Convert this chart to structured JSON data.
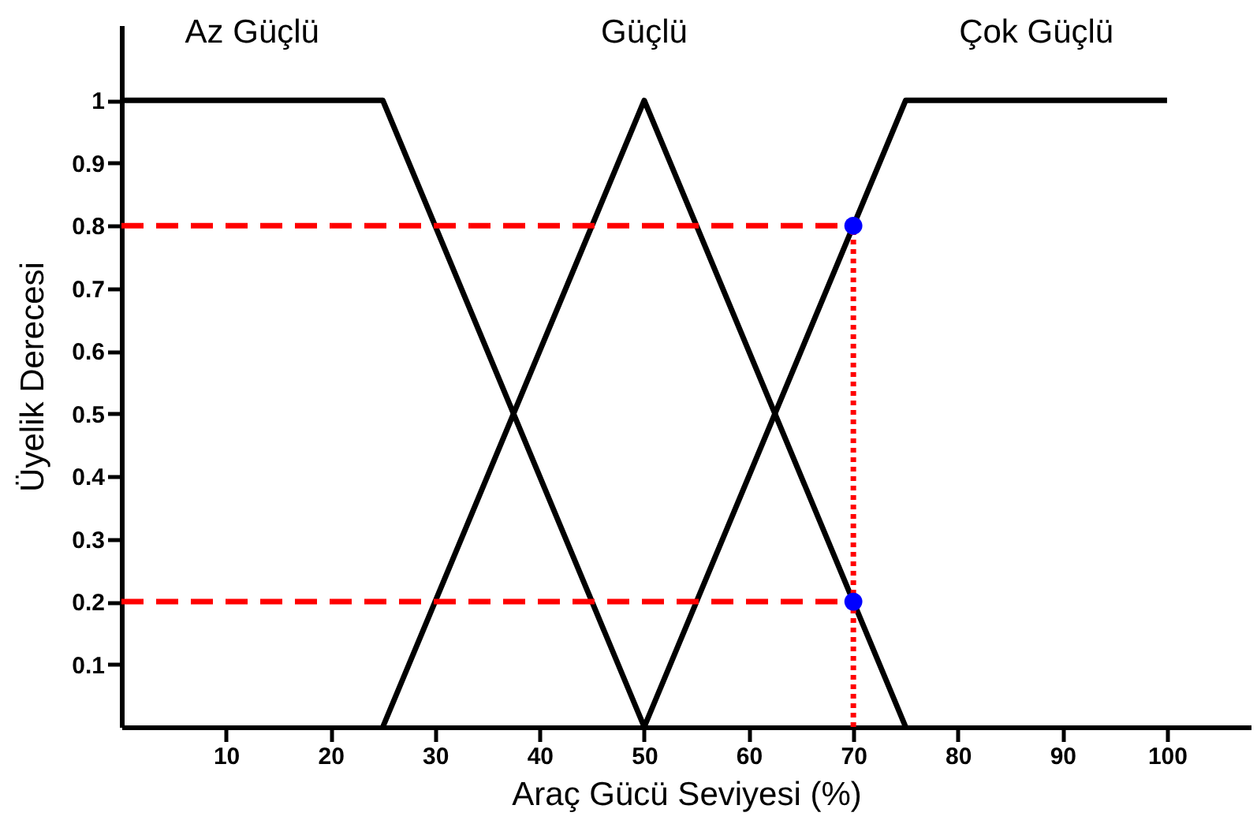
{
  "chart_data": {
    "type": "line",
    "xlabel": "Araç Gücü Seviyesi (%)",
    "ylabel": "Üyelik Derecesi",
    "xlim": [
      0,
      108
    ],
    "ylim": [
      0,
      1.12
    ],
    "xticks": [
      10,
      20,
      30,
      40,
      50,
      60,
      70,
      80,
      90,
      100
    ],
    "yticks": [
      0.1,
      0.2,
      0.3,
      0.4,
      0.5,
      0.6,
      0.7,
      0.8,
      0.9,
      1
    ],
    "grid": false,
    "line_style": "solid",
    "series": [
      {
        "name": "Az Güçlü",
        "color": "#000000",
        "x": [
          0,
          25,
          50
        ],
        "values": [
          1,
          1,
          0
        ]
      },
      {
        "name": "Güçlü",
        "color": "#000000",
        "x": [
          25,
          50,
          75
        ],
        "values": [
          0,
          1,
          0
        ]
      },
      {
        "name": "Çok Güçlü",
        "color": "#000000",
        "x": [
          50,
          75,
          100
        ],
        "values": [
          0,
          1,
          1
        ]
      },
      {
        "type": "line",
        "color": "#ff0000",
        "line_style": "dashed",
        "x": [
          0,
          70
        ],
        "values": [
          0.8,
          0.8
        ]
      },
      {
        "type": "line",
        "color": "#ff0000",
        "line_style": "dashed",
        "x": [
          0,
          70
        ],
        "values": [
          0.2,
          0.2
        ]
      },
      {
        "type": "line",
        "color": "#ff0000",
        "line_style": "dotted",
        "x": [
          70,
          70
        ],
        "values": [
          0,
          0.8
        ]
      },
      {
        "type": "scatter",
        "color": "#0000ff",
        "marker": "circle",
        "x": [
          70,
          70
        ],
        "values": [
          0.8,
          0.2
        ]
      }
    ]
  }
}
